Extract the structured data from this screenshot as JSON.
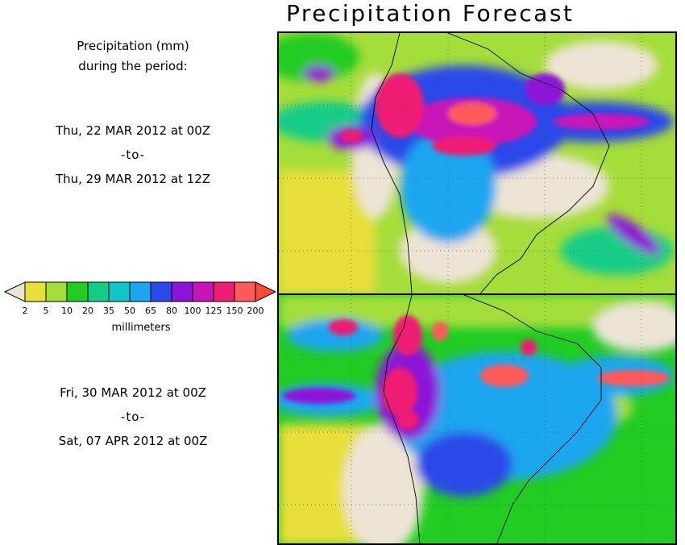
{
  "header": {
    "title": "Precipitation Forecast"
  },
  "left_panel": {
    "units_line1": "Precipitation (mm)",
    "units_line2": "during the period:",
    "period1": {
      "start": "Thu, 22 MAR 2012 at 00Z",
      "sep": "-to-",
      "end": "Thu, 29 MAR 2012 at 12Z"
    },
    "period2": {
      "start": "Fri, 30 MAR 2012 at 00Z",
      "sep": "-to-",
      "end": "Sat, 07 APR 2012 at 00Z"
    }
  },
  "legend": {
    "title": "millimeters",
    "ticks": [
      "2",
      "5",
      "10",
      "20",
      "35",
      "50",
      "65",
      "80",
      "100",
      "125",
      "150",
      "200"
    ],
    "colors": [
      "#e8df3b",
      "#a5dd3a",
      "#22cc22",
      "#14cc88",
      "#10c4c8",
      "#1aa6f0",
      "#2c48e8",
      "#8c14d8",
      "#c814b8",
      "#ee1c72",
      "#ff5a5a"
    ],
    "end_low_color": "#ede4d6",
    "end_high_color": "#ff4a3a"
  },
  "maps": {
    "land_color": "#ede4d6",
    "ocean_dry_color": "#e8df3b"
  }
}
